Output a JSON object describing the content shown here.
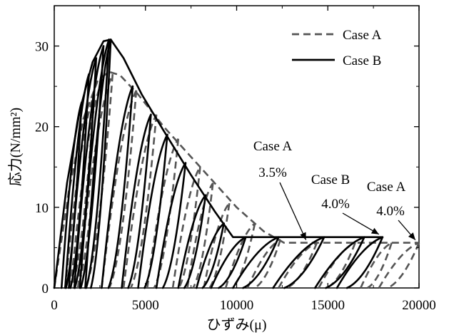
{
  "chart_data": {
    "type": "line",
    "xlabel": "ひずみ(μ)",
    "ylabel": "応力(N/mm²)",
    "xlim": [
      0,
      20000
    ],
    "ylim": [
      0,
      35
    ],
    "xticks": [
      "0",
      "5000",
      "10000",
      "15000",
      "20000"
    ],
    "yticks": [
      "0",
      "10",
      "20",
      "30"
    ],
    "grid": false,
    "legend_position": "top-right",
    "series": [
      {
        "name": "Case A",
        "style": "dashed",
        "color": "#555555",
        "envelope": [
          [
            0,
            0
          ],
          [
            800,
            12
          ],
          [
            1600,
            21
          ],
          [
            2400,
            25.8
          ],
          [
            3000,
            26.8
          ],
          [
            3600,
            26.4
          ],
          [
            4600,
            24
          ],
          [
            6000,
            20
          ],
          [
            8000,
            15
          ],
          [
            10000,
            10
          ],
          [
            11500,
            7
          ],
          [
            12600,
            5.6
          ],
          [
            14000,
            5.6
          ],
          [
            16000,
            5.6
          ],
          [
            18000,
            5.6
          ],
          [
            20000,
            5.6
          ]
        ],
        "reloading_branches": [
          {
            "start": 600,
            "peak_strain": 2200,
            "peak_stress": 24
          },
          {
            "start": 900,
            "peak_strain": 2600,
            "peak_stress": 25.5
          },
          {
            "start": 1300,
            "peak_strain": 3200,
            "peak_stress": 26.5
          },
          {
            "start": 2600,
            "peak_strain": 4500,
            "peak_stress": 24.5
          },
          {
            "start": 3800,
            "peak_strain": 5600,
            "peak_stress": 21.5
          },
          {
            "start": 5100,
            "peak_strain": 6800,
            "peak_stress": 18.5
          },
          {
            "start": 6500,
            "peak_strain": 8000,
            "peak_stress": 15
          },
          {
            "start": 7300,
            "peak_strain": 8700,
            "peak_stress": 13
          },
          {
            "start": 8200,
            "peak_strain": 9600,
            "peak_stress": 10.5
          },
          {
            "start": 9400,
            "peak_strain": 11000,
            "peak_stress": 8
          },
          {
            "start": 10600,
            "peak_strain": 12400,
            "peak_stress": 6
          },
          {
            "start": 12300,
            "peak_strain": 14400,
            "peak_stress": 5.6
          },
          {
            "start": 14500,
            "peak_strain": 16500,
            "peak_stress": 5.6
          },
          {
            "start": 16800,
            "peak_strain": 18500,
            "peak_stress": 5.6
          },
          {
            "start": 17800,
            "peak_strain": 20000,
            "peak_stress": 5.6
          }
        ]
      },
      {
        "name": "Case B",
        "style": "solid",
        "color": "#000000",
        "envelope": [
          [
            0,
            0
          ],
          [
            700,
            13
          ],
          [
            1400,
            22
          ],
          [
            2100,
            28
          ],
          [
            2700,
            30.6
          ],
          [
            3100,
            30.8
          ],
          [
            3800,
            28.5
          ],
          [
            4800,
            24
          ],
          [
            6000,
            19.5
          ],
          [
            7500,
            14
          ],
          [
            8800,
            9.5
          ],
          [
            9800,
            6.3
          ],
          [
            11000,
            6.3
          ],
          [
            13000,
            6.3
          ],
          [
            15000,
            6.3
          ],
          [
            17000,
            6.3
          ],
          [
            18000,
            6.3
          ]
        ],
        "reloading_branches": [
          {
            "start": 400,
            "peak_strain": 1500,
            "peak_stress": 23
          },
          {
            "start": 600,
            "peak_strain": 1900,
            "peak_stress": 26.5
          },
          {
            "start": 800,
            "peak_strain": 2300,
            "peak_stress": 28.5
          },
          {
            "start": 1100,
            "peak_strain": 2700,
            "peak_stress": 30
          },
          {
            "start": 1400,
            "peak_strain": 3000,
            "peak_stress": 30.8
          },
          {
            "start": 1700,
            "peak_strain": 3100,
            "peak_stress": 30.8
          },
          {
            "start": 2600,
            "peak_strain": 4300,
            "peak_stress": 25
          },
          {
            "start": 3700,
            "peak_strain": 5300,
            "peak_stress": 21.5
          },
          {
            "start": 4600,
            "peak_strain": 6200,
            "peak_stress": 19
          },
          {
            "start": 5600,
            "peak_strain": 7200,
            "peak_stress": 15.5
          },
          {
            "start": 6800,
            "peak_strain": 8300,
            "peak_stress": 11.5
          },
          {
            "start": 7800,
            "peak_strain": 9300,
            "peak_stress": 8
          },
          {
            "start": 8600,
            "peak_strain": 10500,
            "peak_stress": 6.3
          },
          {
            "start": 9800,
            "peak_strain": 12300,
            "peak_stress": 6.3
          },
          {
            "start": 12000,
            "peak_strain": 14800,
            "peak_stress": 6.3
          },
          {
            "start": 14300,
            "peak_strain": 17000,
            "peak_stress": 6.3
          },
          {
            "start": 15500,
            "peak_strain": 18000,
            "peak_stress": 6.3
          }
        ]
      }
    ],
    "annotations": [
      {
        "name": "Case A",
        "text": "3.5%",
        "target": [
          13800,
          5.6
        ]
      },
      {
        "name": "Case B",
        "text": "4.0%",
        "target": [
          17800,
          6.3
        ]
      },
      {
        "name": "Case A",
        "text": "4.0%",
        "target": [
          19800,
          5.6
        ]
      }
    ]
  }
}
